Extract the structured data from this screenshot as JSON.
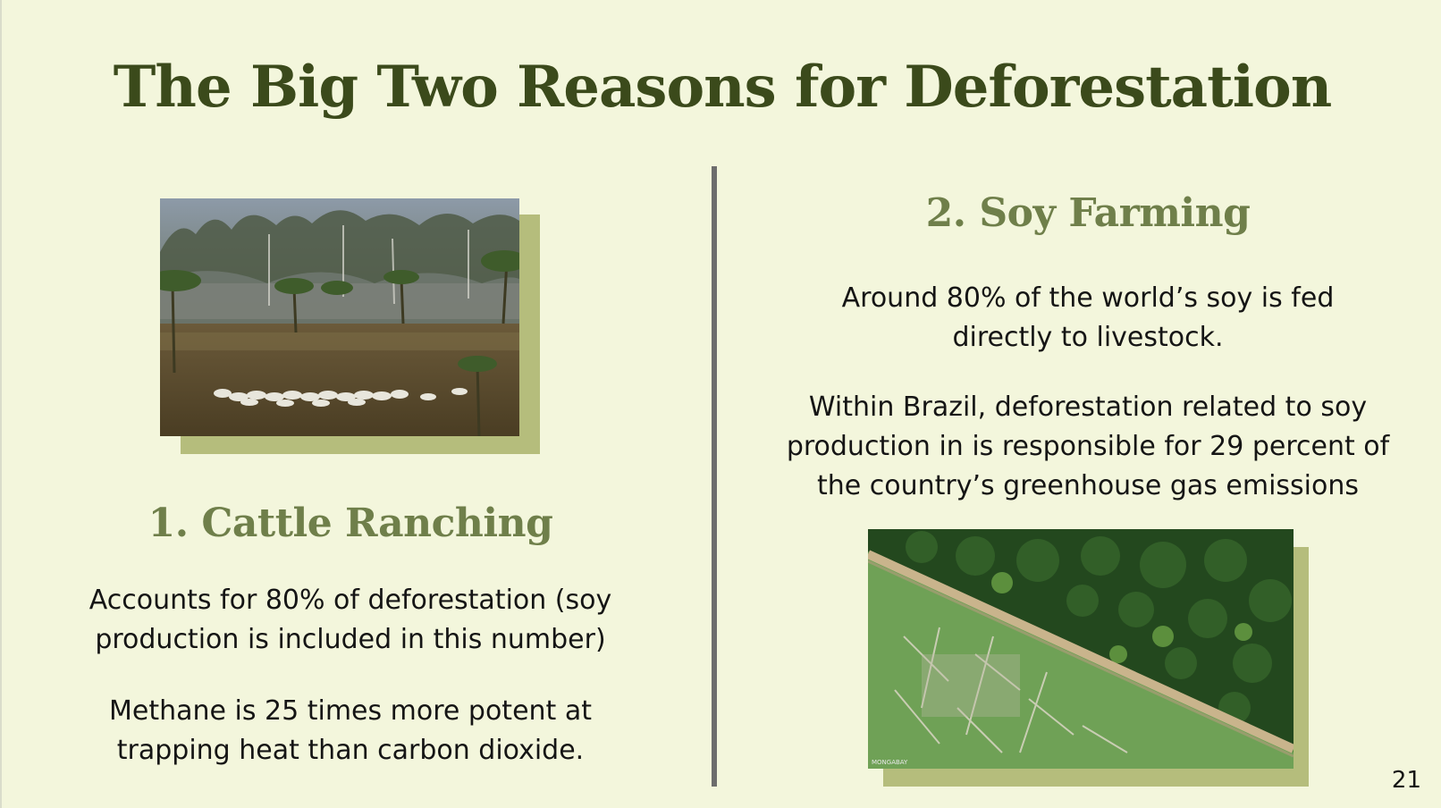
{
  "slide": {
    "title": "The Big Two Reasons for Deforestation",
    "page_number": "21"
  },
  "left": {
    "heading": "1. Cattle Ranching",
    "paragraphs": [
      "Accounts for 80% of deforestation (soy production is included in this number)",
      "Methane is 25 times more potent at trapping heat than carbon dioxide."
    ]
  },
  "right": {
    "heading": "2. Soy Farming",
    "paragraphs": [
      "Around 80% of the world’s soy is fed directly to livestock.",
      "Within Brazil, deforestation related to soy production in is responsible for 29 percent of the country’s greenhouse gas emissions"
    ]
  },
  "images": {
    "cattle_photo_watermark": "",
    "soy_photo_watermark": "MONGABAY"
  },
  "colors": {
    "background": "#f3f6dc",
    "title": "#3b4a1b",
    "heading": "#6f7f4a",
    "photo_shadow": "#b5bd7c",
    "divider": "#6d6d6d"
  }
}
